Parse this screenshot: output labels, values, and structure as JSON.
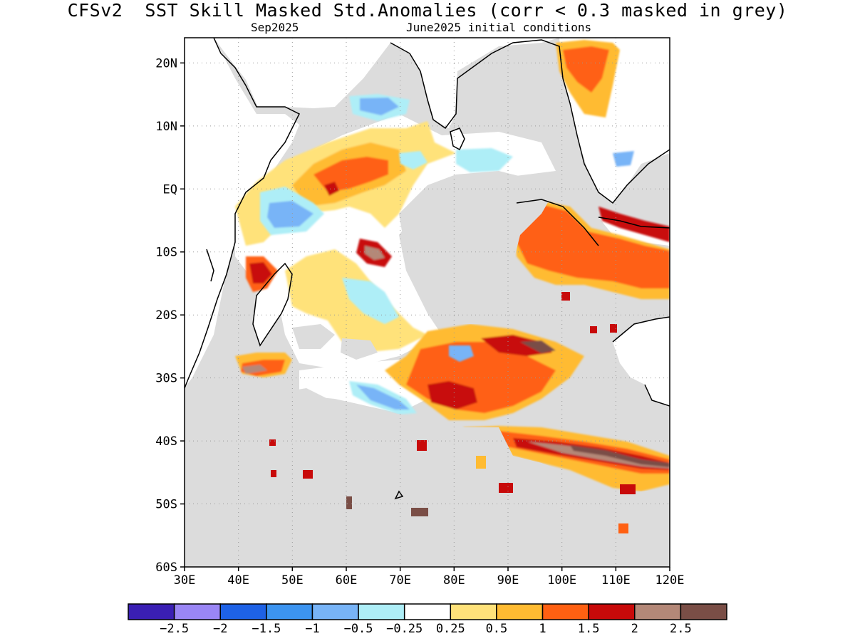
{
  "header": {
    "title": "CFSv2  SST Skill Masked Std.Anomalies (corr < 0.3 masked in grey)",
    "valid_month": "Sep2025",
    "init_conditions": "June2025 initial conditions"
  },
  "map": {
    "region": {
      "lon_min": 30,
      "lon_max": 120,
      "lat_min": -60,
      "lat_max": 24
    },
    "lat_ticks": [
      "20N",
      "10N",
      "EQ",
      "10S",
      "20S",
      "30S",
      "40S",
      "50S",
      "60S"
    ],
    "lon_ticks": [
      "30E",
      "40E",
      "50E",
      "60E",
      "70E",
      "80E",
      "90E",
      "100E",
      "110E",
      "120E"
    ],
    "mask_color": "#dcdcdc",
    "land_color": "#ffffff",
    "coastline_color": "#000000"
  },
  "colorbar": {
    "colors": [
      "#3a1fb4",
      "#9a86f5",
      "#1e62e6",
      "#3c94f0",
      "#78b4f7",
      "#aeeef7",
      "#ffffff",
      "#ffe27a",
      "#ffbb32",
      "#ff6012",
      "#c80a0a",
      "#b48878",
      "#7a4e46"
    ],
    "labels": [
      "−2.5",
      "−2",
      "−1.5",
      "−1",
      "−0.5",
      "−0.25",
      "0.25",
      "0.5",
      "1",
      "1.5",
      "2",
      "2.5"
    ]
  }
}
